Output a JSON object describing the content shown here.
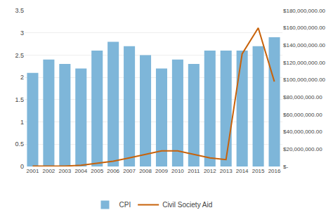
{
  "chart_data": {
    "type": "bar",
    "categories": [
      "2001",
      "2002",
      "2003",
      "2004",
      "2005",
      "2006",
      "2007",
      "2008",
      "2009",
      "2010",
      "2011",
      "2012",
      "2013",
      "2014",
      "2015",
      "2016"
    ],
    "series": [
      {
        "name": "CPI",
        "type": "bar",
        "color": "#7EB6D9",
        "values": [
          2.1,
          2.4,
          2.3,
          2.2,
          2.6,
          2.8,
          2.7,
          2.5,
          2.2,
          2.4,
          2.3,
          2.6,
          2.6,
          2.6,
          2.7,
          2.9
        ]
      },
      {
        "name": "Civil Society Aid",
        "type": "line",
        "color": "#C8620A",
        "axis": "y2",
        "values": [
          500000,
          500000,
          500000,
          1500000,
          4000000,
          6000000,
          10000000,
          14000000,
          18000000,
          18000000,
          14000000,
          10000000,
          8000000,
          130000000,
          160000000,
          98000000
        ]
      }
    ],
    "ylim": [
      0,
      3.5
    ],
    "yticks": [
      0,
      0.5,
      1,
      1.5,
      2,
      2.5,
      3,
      3.5
    ],
    "y2lim": [
      0,
      180000000
    ],
    "y2ticks": [
      {
        "value": 0,
        "label": "$-"
      },
      {
        "value": 20000000,
        "label": "$20,000,000.00"
      },
      {
        "value": 40000000,
        "label": "$40,000,000.00"
      },
      {
        "value": 60000000,
        "label": "$60,000,000.00"
      },
      {
        "value": 80000000,
        "label": "$80,000,000.00"
      },
      {
        "value": 100000000,
        "label": "$100,000,000.00"
      },
      {
        "value": 120000000,
        "label": "$120,000,000.00"
      },
      {
        "value": 140000000,
        "label": "$140,000,000.00"
      },
      {
        "value": 160000000,
        "label": "$160,000,000.00"
      },
      {
        "value": 180000000,
        "label": "$180,000,000.00"
      }
    ],
    "grid": true,
    "legend": "bottom"
  }
}
